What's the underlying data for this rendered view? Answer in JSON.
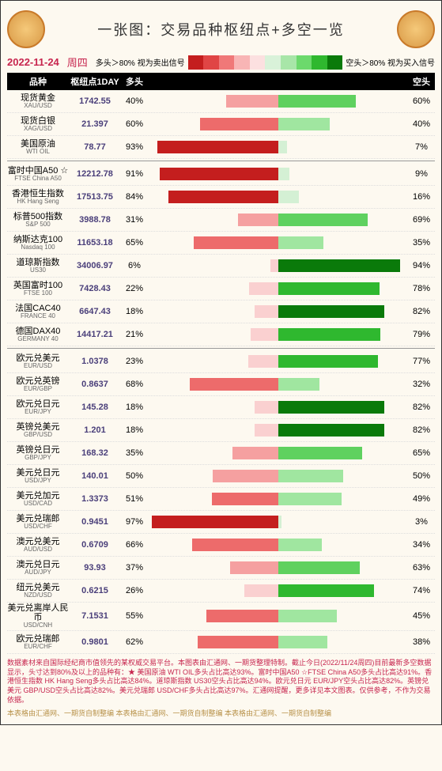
{
  "title": "一张图：交易品种枢纽点+多空一览",
  "date": "2022-11-24",
  "day": "周四",
  "legendL": "多头＞80% 视为卖出信号",
  "legendR": "空头＞80% 视为买入信号",
  "longLabel": "多头",
  "shortLabel": "空头",
  "colName": "品种",
  "colPivot": "枢纽点1DAY",
  "gradientColors": [
    "#c41e1e",
    "#e04545",
    "#f07878",
    "#f8b5b5",
    "#fce0e0",
    "#d9f2d9",
    "#a8e6a8",
    "#6cd96c",
    "#2fb82f",
    "#0a7a0a"
  ],
  "colorMap": {
    "r5": "#c41e1e",
    "r4": "#e04545",
    "r3": "#ed6b6b",
    "r2": "#f5a0a0",
    "r1": "#fad0d0",
    "g1": "#d4f0d4",
    "g2": "#a0e6a0",
    "g3": "#5fd15f",
    "g4": "#2fb82f",
    "g5": "#0a7a0a"
  },
  "groups": [
    [
      {
        "cn": "现货黄金",
        "en": "XAU/USD",
        "pivot": "1742.55",
        "long": 40,
        "short": 60,
        "lc": "r2",
        "sc": "g3"
      },
      {
        "cn": "现货白银",
        "en": "XAG/USD",
        "pivot": "21.397",
        "long": 60,
        "short": 40,
        "lc": "r3",
        "sc": "g2"
      },
      {
        "cn": "美国原油",
        "en": "WTI OIL",
        "pivot": "78.77",
        "long": 93,
        "short": 7,
        "lc": "r5",
        "sc": "g1"
      }
    ],
    [
      {
        "cn": "富时中国A50 ☆",
        "en": "FTSE China A50",
        "pivot": "12212.78",
        "long": 91,
        "short": 9,
        "lc": "r5",
        "sc": "g1"
      },
      {
        "cn": "香港恒生指数",
        "en": "HK Hang Seng",
        "pivot": "17513.75",
        "long": 84,
        "short": 16,
        "lc": "r5",
        "sc": "g1"
      },
      {
        "cn": "标普500指数",
        "en": "S&P 500",
        "pivot": "3988.78",
        "long": 31,
        "short": 69,
        "lc": "r2",
        "sc": "g3"
      },
      {
        "cn": "纳斯达克100",
        "en": "Nasdaq 100",
        "pivot": "11653.18",
        "long": 65,
        "short": 35,
        "lc": "r3",
        "sc": "g2"
      },
      {
        "cn": "道琼斯指数",
        "en": "US30",
        "pivot": "34006.97",
        "long": 6,
        "short": 94,
        "lc": "r1",
        "sc": "g5"
      },
      {
        "cn": "英国富时100",
        "en": "FTSE 100",
        "pivot": "7428.43",
        "long": 22,
        "short": 78,
        "lc": "r1",
        "sc": "g4"
      },
      {
        "cn": "法国CAC40",
        "en": "FRANCE 40",
        "pivot": "6647.43",
        "long": 18,
        "short": 82,
        "lc": "r1",
        "sc": "g5"
      },
      {
        "cn": "德国DAX40",
        "en": "GERMANY 40",
        "pivot": "14417.21",
        "long": 21,
        "short": 79,
        "lc": "r1",
        "sc": "g4"
      }
    ],
    [
      {
        "cn": "欧元兑美元",
        "en": "EUR/USD",
        "pivot": "1.0378",
        "long": 23,
        "short": 77,
        "lc": "r1",
        "sc": "g4"
      },
      {
        "cn": "欧元兑英镑",
        "en": "EUR/GBP",
        "pivot": "0.8637",
        "long": 68,
        "short": 32,
        "lc": "r3",
        "sc": "g2"
      },
      {
        "cn": "欧元兑日元",
        "en": "EUR/JPY",
        "pivot": "145.28",
        "long": 18,
        "short": 82,
        "lc": "r1",
        "sc": "g5"
      },
      {
        "cn": "英镑兑美元",
        "en": "GBP/USD",
        "pivot": "1.201",
        "long": 18,
        "short": 82,
        "lc": "r1",
        "sc": "g5"
      },
      {
        "cn": "英镑兑日元",
        "en": "GBP/JPY",
        "pivot": "168.32",
        "long": 35,
        "short": 65,
        "lc": "r2",
        "sc": "g3"
      },
      {
        "cn": "美元兑日元",
        "en": "USD/JPY",
        "pivot": "140.01",
        "long": 50,
        "short": 50,
        "lc": "r2",
        "sc": "g2"
      },
      {
        "cn": "美元兑加元",
        "en": "USD/CAD",
        "pivot": "1.3373",
        "long": 51,
        "short": 49,
        "lc": "r3",
        "sc": "g2"
      },
      {
        "cn": "美元兑瑞郎",
        "en": "USD/CHF",
        "pivot": "0.9451",
        "long": 97,
        "short": 3,
        "lc": "r5",
        "sc": "g1"
      },
      {
        "cn": "澳元兑美元",
        "en": "AUD/USD",
        "pivot": "0.6709",
        "long": 66,
        "short": 34,
        "lc": "r3",
        "sc": "g2"
      },
      {
        "cn": "澳元兑日元",
        "en": "AUD/JPY",
        "pivot": "93.93",
        "long": 37,
        "short": 63,
        "lc": "r2",
        "sc": "g3"
      },
      {
        "cn": "纽元兑美元",
        "en": "NZD/USD",
        "pivot": "0.6215",
        "long": 26,
        "short": 74,
        "lc": "r1",
        "sc": "g4"
      },
      {
        "cn": "美元兑离岸人民币",
        "en": "USD/CNH",
        "pivot": "7.1531",
        "long": 55,
        "short": 45,
        "lc": "r3",
        "sc": "g2"
      },
      {
        "cn": "欧元兑瑞郎",
        "en": "EUR/CHF",
        "pivot": "0.9801",
        "long": 62,
        "short": 38,
        "lc": "r3",
        "sc": "g2"
      }
    ]
  ],
  "footer": "数据素材来自国际经纪商市值领先的某权威交易平台。本图表由汇通网、一期货整理特制。截止今日(2022/11/24周四)目前最新多空数据显示，头寸达到80%及以上的品种有：★ 美国原油 WTI OIL多头占比高达93%。富时中国A50 ☆FTSE China A50多头占比高达91%。香港恒生指数 HK Hang Seng多头占比高达84%。道琼斯指数 US30空头占比高达94%。欧元兑日元 EUR/JPY空头占比高达82%。英镑兑美元 GBP/USD空头占比高达82%。美元兑瑞郎 USD/CHF多头占比高达97%。汇通网提醒，更多详见本文图表。仅供参考，不作为交易依据。",
  "footer2": "本表格由汇通网、一期货自制整编        本表格由汇通网、一期货自制整编        本表格由汇通网、一期货自制整编"
}
